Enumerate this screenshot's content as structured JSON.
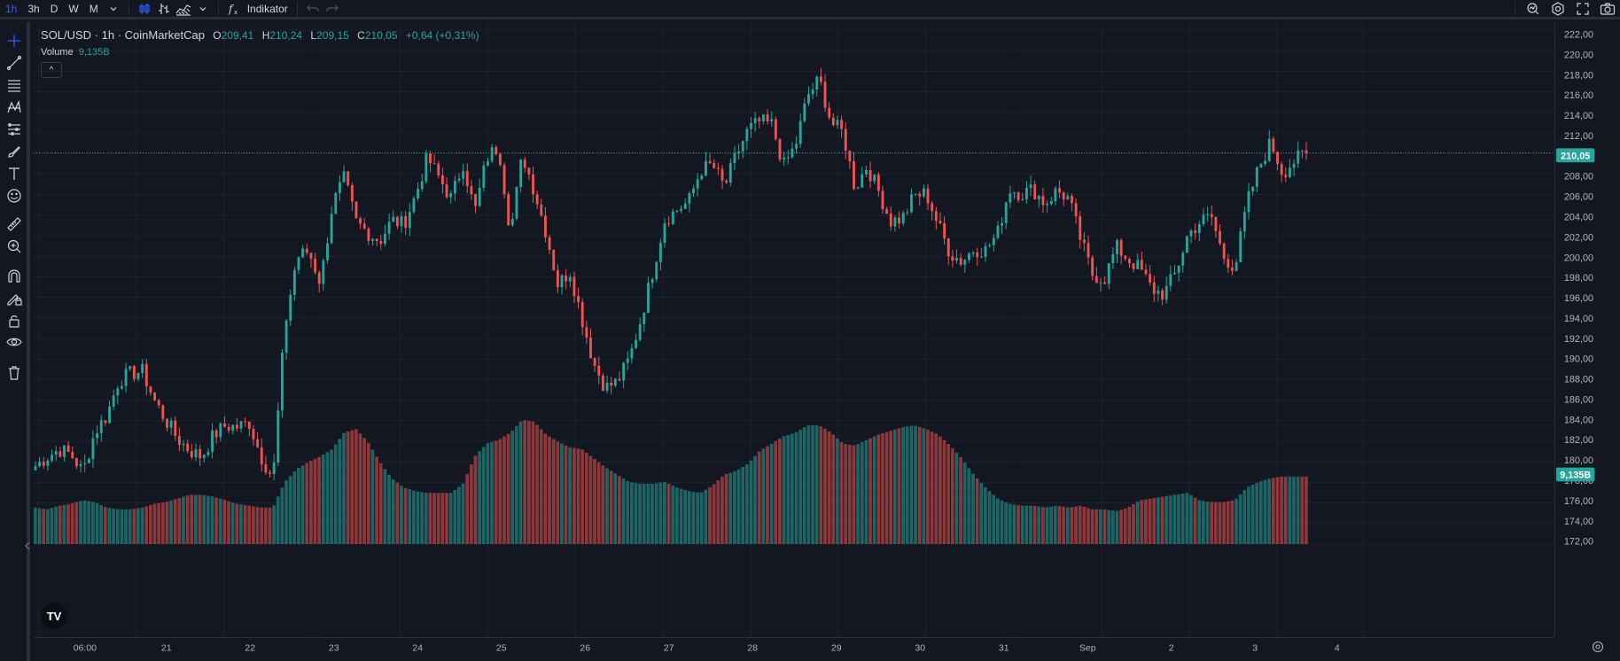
{
  "toolbar": {
    "timeframes": [
      "1h",
      "3h",
      "D",
      "W",
      "M"
    ],
    "active_timeframe": "1h",
    "indicator_label": "Indikator",
    "icons": [
      "chevron-down-icon",
      "candles-icon",
      "bars-icon",
      "area-icon",
      "chevron-down-icon",
      "fx-icon",
      "undo-icon",
      "redo-icon",
      "search-chart-icon",
      "settings-icon",
      "fullscreen-icon",
      "camera-icon"
    ]
  },
  "left_tools": [
    "crosshair-icon",
    "trend-line-icon",
    "horizontal-lines-icon",
    "pattern-icon",
    "fib-icon",
    "brush-icon",
    "text-icon",
    "emoji-icon",
    "ruler-icon",
    "zoom-in-icon",
    "magnet-icon",
    "lock-drawing-icon",
    "lock-icon",
    "eye-icon",
    "trash-icon"
  ],
  "legend": {
    "symbol": "SOL/USD · 1h · CoinMarketCap",
    "o_label": "O",
    "o_value": "209,41",
    "h_label": "H",
    "h_value": "210,24",
    "l_label": "L",
    "l_value": "209,15",
    "c_label": "C",
    "c_value": "210,05",
    "change": "+0,64 (+0,31%)",
    "volume_label": "Volume",
    "volume_value": "9,135B",
    "collapse_symbol": "^"
  },
  "price_badge": "210,05",
  "volume_badge": "9,135B",
  "colors": {
    "up": "#26a69a",
    "down": "#ef5350",
    "accent": "#2962ff",
    "bg": "#131722",
    "grid": "#1e222d"
  },
  "chart_data": {
    "type": "candlestick",
    "y_axis": {
      "min": 172,
      "max": 222,
      "step": 2,
      "decimal_separator": ","
    },
    "y_ticks": [
      "222,00",
      "220,00",
      "218,00",
      "216,00",
      "214,00",
      "212,00",
      "210,00",
      "208,00",
      "206,00",
      "204,00",
      "202,00",
      "200,00",
      "198,00",
      "196,00",
      "194,00",
      "192,00",
      "190,00",
      "188,00",
      "186,00",
      "184,00",
      "182,00",
      "180,00",
      "178,00",
      "176,00",
      "174,00",
      "172,00"
    ],
    "x_ticks": [
      "06:00",
      "21",
      "22",
      "23",
      "24",
      "25",
      "26",
      "27",
      "28",
      "29",
      "30",
      "31",
      "Sep",
      "2",
      "3",
      "4"
    ],
    "close_anchors": [
      179.6,
      180.5,
      181.2,
      180.7,
      179.0,
      182.9,
      184.5,
      187.9,
      188.6,
      188.8,
      186.0,
      184.0,
      182.2,
      181.1,
      180.5,
      182.6,
      183.5,
      183.4,
      183.8,
      180.5,
      178.4,
      193.2,
      199.9,
      200.5,
      197.4,
      205.0,
      207.6,
      203.3,
      202.3,
      201.5,
      203.5,
      203.1,
      205.9,
      209.6,
      207.6,
      205.6,
      209.1,
      204.3,
      209.6,
      210.7,
      202.3,
      209.9,
      206.4,
      202.3,
      197.2,
      198.6,
      194.0,
      189.6,
      187.2,
      187.8,
      190.0,
      194.0,
      198.7,
      203.6,
      204.5,
      205.3,
      208.4,
      208.9,
      206.7,
      209.8,
      212.3,
      213.1,
      212.8,
      208.8,
      210.8,
      215.6,
      217.2,
      213.0,
      212.0,
      206.6,
      208.8,
      206.3,
      203.4,
      203.7,
      205.9,
      206.1,
      203.1,
      200.3,
      199.5,
      200.7,
      200.6,
      202.2,
      206.6,
      206.1,
      206.5,
      205.1,
      206.4,
      205.6,
      201.6,
      198.2,
      197.8,
      200.9,
      199.7,
      198.8,
      196.8,
      196.3,
      198.4,
      202.0,
      203.3,
      203.9,
      200.0,
      198.9,
      205.1,
      208.6,
      211.1,
      208.1,
      209.3,
      210.05
    ],
    "volume_anchors": [
      0.2,
      0.19,
      0.21,
      0.22,
      0.24,
      0.23,
      0.2,
      0.19,
      0.19,
      0.2,
      0.22,
      0.23,
      0.25,
      0.27,
      0.27,
      0.26,
      0.24,
      0.22,
      0.21,
      0.2,
      0.2,
      0.34,
      0.41,
      0.45,
      0.48,
      0.52,
      0.61,
      0.63,
      0.56,
      0.45,
      0.36,
      0.31,
      0.29,
      0.28,
      0.28,
      0.28,
      0.33,
      0.48,
      0.55,
      0.57,
      0.61,
      0.68,
      0.67,
      0.6,
      0.56,
      0.53,
      0.52,
      0.47,
      0.42,
      0.38,
      0.34,
      0.33,
      0.33,
      0.34,
      0.31,
      0.29,
      0.28,
      0.32,
      0.38,
      0.4,
      0.44,
      0.51,
      0.55,
      0.59,
      0.61,
      0.65,
      0.65,
      0.61,
      0.55,
      0.54,
      0.57,
      0.6,
      0.62,
      0.64,
      0.65,
      0.63,
      0.6,
      0.54,
      0.47,
      0.38,
      0.31,
      0.25,
      0.22,
      0.21,
      0.21,
      0.2,
      0.21,
      0.2,
      0.21,
      0.19,
      0.19,
      0.18,
      0.2,
      0.24,
      0.25,
      0.26,
      0.27,
      0.28,
      0.24,
      0.23,
      0.23,
      0.24,
      0.31,
      0.34,
      0.36,
      0.37,
      0.37,
      0.37
    ],
    "candle_count": 310,
    "last_close": 210.05,
    "last_volume": "9,135B"
  }
}
